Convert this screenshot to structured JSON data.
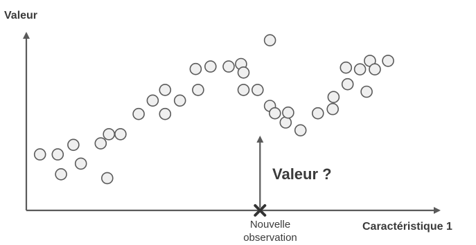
{
  "labels": {
    "y_axis": "Valeur",
    "x_axis": "Caractéristique 1",
    "query_value": "Valeur ?",
    "new_observation_line1": "Nouvelle",
    "new_observation_line2": "observation"
  },
  "colors": {
    "axis": "#5a5a5a",
    "point_fill": "#efefef",
    "point_stroke": "#5a5a5a",
    "text": "#3a3a3a"
  },
  "chart_data": {
    "type": "scatter",
    "xlabel": "Caractéristique 1",
    "ylabel": "Valeur",
    "xlim": [
      0,
      100
    ],
    "ylim": [
      0,
      100
    ],
    "points": [
      {
        "x": 3.3,
        "y": 31.6
      },
      {
        "x": 7.6,
        "y": 31.6
      },
      {
        "x": 8.4,
        "y": 20.4
      },
      {
        "x": 11.4,
        "y": 37.0
      },
      {
        "x": 13.2,
        "y": 26.4
      },
      {
        "x": 18.0,
        "y": 37.8
      },
      {
        "x": 19.6,
        "y": 18.2
      },
      {
        "x": 20.0,
        "y": 43.0
      },
      {
        "x": 22.8,
        "y": 43.0
      },
      {
        "x": 27.2,
        "y": 54.4
      },
      {
        "x": 30.6,
        "y": 62.0
      },
      {
        "x": 33.6,
        "y": 68.0
      },
      {
        "x": 33.6,
        "y": 54.4
      },
      {
        "x": 37.2,
        "y": 62.0
      },
      {
        "x": 41.0,
        "y": 79.8
      },
      {
        "x": 41.6,
        "y": 68.0
      },
      {
        "x": 44.6,
        "y": 81.2
      },
      {
        "x": 49.0,
        "y": 81.2
      },
      {
        "x": 52.0,
        "y": 82.6
      },
      {
        "x": 52.6,
        "y": 77.8
      },
      {
        "x": 52.6,
        "y": 68.0
      },
      {
        "x": 56.0,
        "y": 68.0
      },
      {
        "x": 59.0,
        "y": 96.0
      },
      {
        "x": 59.0,
        "y": 59.0
      },
      {
        "x": 60.2,
        "y": 54.8
      },
      {
        "x": 62.8,
        "y": 49.6
      },
      {
        "x": 63.4,
        "y": 55.2
      },
      {
        "x": 66.4,
        "y": 45.2
      },
      {
        "x": 70.6,
        "y": 54.8
      },
      {
        "x": 74.4,
        "y": 64.0
      },
      {
        "x": 74.2,
        "y": 57.2
      },
      {
        "x": 77.4,
        "y": 80.6
      },
      {
        "x": 77.8,
        "y": 71.2
      },
      {
        "x": 80.8,
        "y": 79.6
      },
      {
        "x": 83.2,
        "y": 84.4
      },
      {
        "x": 82.4,
        "y": 67.0
      },
      {
        "x": 84.4,
        "y": 79.6
      },
      {
        "x": 87.6,
        "y": 84.4
      }
    ],
    "new_observation_x": 56.6,
    "new_observation_y": 0
  }
}
